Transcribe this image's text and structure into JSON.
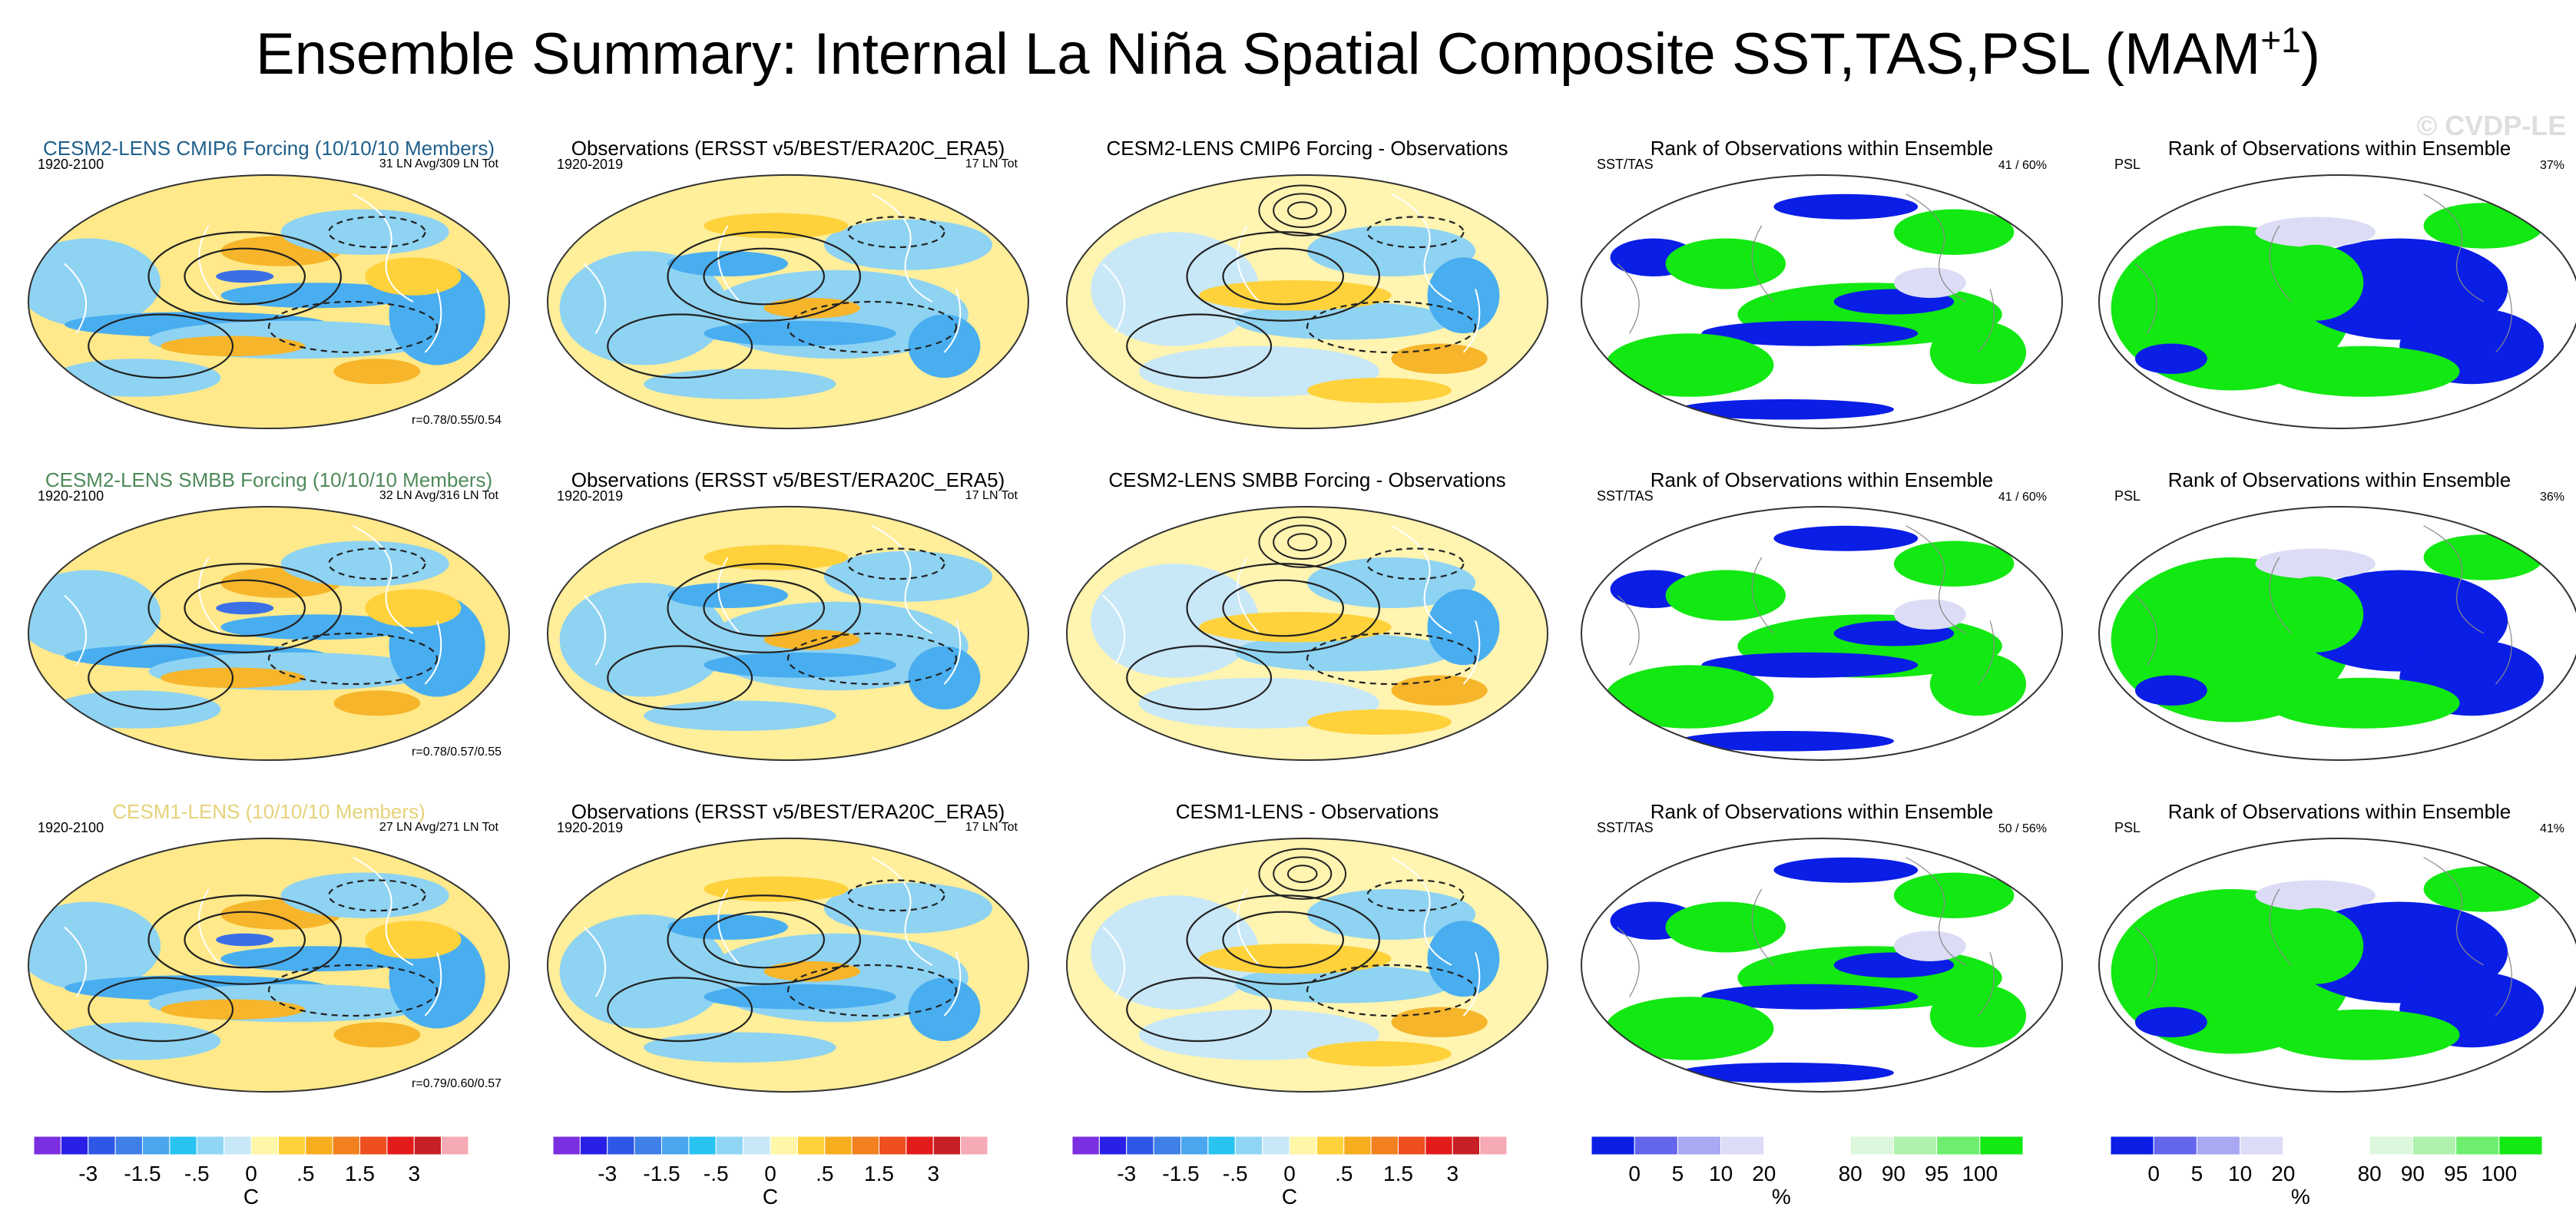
{
  "title": {
    "main": "Ensemble Summary: Internal La Niña Spatial Composite SST,TAS,PSL (MAM",
    "sup": "+1",
    "close": ")"
  },
  "watermark": "© CVDP-LE",
  "rows": [
    {
      "model": {
        "title": "CESM2-LENS CMIP6 Forcing (10/10/10 Members)",
        "title_color": "#1f5f8b",
        "years": "1920-2100",
        "counts": "31 LN Avg/309 LN Tot",
        "corr": "r=0.78/0.55/0.54",
        "style": "model"
      },
      "obs": {
        "title": "Observations (ERSST v5/BEST/ERA20C_ERA5)",
        "years": "1920-2019",
        "counts": "17 LN Tot",
        "style": "obs"
      },
      "diff": {
        "title": "CESM2-LENS CMIP6 Forcing - Observations",
        "style": "diff"
      },
      "rank_ssttas": {
        "title": "Rank of Observations within Ensemble",
        "label": "SST/TAS",
        "value": "41 /  60%",
        "style": "rank1"
      },
      "rank_psl": {
        "title": "Rank of Observations within Ensemble",
        "label": "PSL",
        "value": "37%",
        "style": "rank2"
      }
    },
    {
      "model": {
        "title": "CESM2-LENS SMBB Forcing (10/10/10 Members)",
        "title_color": "#4f8a5a",
        "years": "1920-2100",
        "counts": "32 LN Avg/316 LN Tot",
        "corr": "r=0.78/0.57/0.55",
        "style": "model"
      },
      "obs": {
        "title": "Observations (ERSST v5/BEST/ERA20C_ERA5)",
        "years": "1920-2019",
        "counts": "17 LN Tot",
        "style": "obs"
      },
      "diff": {
        "title": "CESM2-LENS SMBB Forcing - Observations",
        "style": "diff"
      },
      "rank_ssttas": {
        "title": "Rank of Observations within Ensemble",
        "label": "SST/TAS",
        "value": "41 /  60%",
        "style": "rank1"
      },
      "rank_psl": {
        "title": "Rank of Observations within Ensemble",
        "label": "PSL",
        "value": "36%",
        "style": "rank2"
      }
    },
    {
      "model": {
        "title": "CESM1-LENS (10/10/10 Members)",
        "title_color": "#e6d27a",
        "years": "1920-2100",
        "counts": "27 LN Avg/271 LN Tot",
        "corr": "r=0.79/0.60/0.57",
        "style": "model"
      },
      "obs": {
        "title": "Observations (ERSST v5/BEST/ERA20C_ERA5)",
        "years": "1920-2019",
        "counts": "17 LN Tot",
        "style": "obs"
      },
      "diff": {
        "title": "CESM1-LENS - Observations",
        "style": "diff"
      },
      "rank_ssttas": {
        "title": "Rank of Observations within Ensemble",
        "label": "SST/TAS",
        "value": "50 /  56%",
        "style": "rank1"
      },
      "rank_psl": {
        "title": "Rank of Observations within Ensemble",
        "label": "PSL",
        "value": "41%",
        "style": "rank2"
      }
    }
  ],
  "colorbars": {
    "temperature": {
      "colors": [
        "#7b2fe0",
        "#2a1fe6",
        "#2f57e6",
        "#3f7fe8",
        "#4aa6ee",
        "#29c3f2",
        "#8fd6f5",
        "#c8e8f8",
        "#fff6a8",
        "#ffd23c",
        "#f6ad1e",
        "#f2801f",
        "#ee4e20",
        "#e31b1b",
        "#c61f24",
        "#f5aab4"
      ],
      "tick_labels": [
        "-3",
        "-1.5",
        "-.5",
        "0",
        ".5",
        "1.5",
        "3"
      ],
      "tick_boundaries": [
        2,
        4,
        6,
        8,
        10,
        12,
        14
      ],
      "unit": "C"
    },
    "rank": {
      "colors": [
        "#0a1ee6",
        "#6466ee",
        "#a9a9f3",
        "#dcdcf6",
        "#ffffff",
        "#ffffff",
        "#dcf7dc",
        "#aef2ae",
        "#6eee6e",
        "#12e812"
      ],
      "tick_labels": [
        "0",
        "5",
        "10",
        "20",
        "80",
        "90",
        "95",
        "100"
      ],
      "tick_boundaries": [
        1,
        2,
        3,
        4,
        6,
        7,
        8,
        9
      ],
      "unit": "%"
    }
  },
  "chart_data": {
    "type": "heatmap",
    "title": "Ensemble Summary: Internal La Niña Spatial Composite SST,TAS,PSL (MAM+1)",
    "description": "3x5 grid of global map panels: model composite, observations composite, model minus observations, rank of observations within ensemble (SST/TAS), rank of observations within ensemble (PSL)",
    "rows": [
      "CESM2-LENS CMIP6 Forcing (10/10/10 Members)",
      "CESM2-LENS SMBB Forcing (10/10/10 Members)",
      "CESM1-LENS (10/10/10 Members)"
    ],
    "columns": [
      "Model composite",
      "Observations (ERSST v5/BEST/ERA20C_ERA5)",
      "Model - Observations",
      "Rank SST/TAS",
      "Rank PSL"
    ],
    "rank_ssttas": [
      "41 / 60%",
      "41 / 60%",
      "50 / 56%"
    ],
    "rank_psl": [
      "37%",
      "36%",
      "41%"
    ],
    "pattern_correlations": [
      "0.78/0.55/0.54",
      "0.78/0.57/0.55",
      "0.79/0.60/0.57"
    ],
    "temperature_colorbar_ticks": [
      -3,
      -1.5,
      -0.5,
      0,
      0.5,
      1.5,
      3
    ],
    "rank_colorbar_ticks": [
      0,
      5,
      10,
      20,
      80,
      90,
      95,
      100
    ]
  }
}
